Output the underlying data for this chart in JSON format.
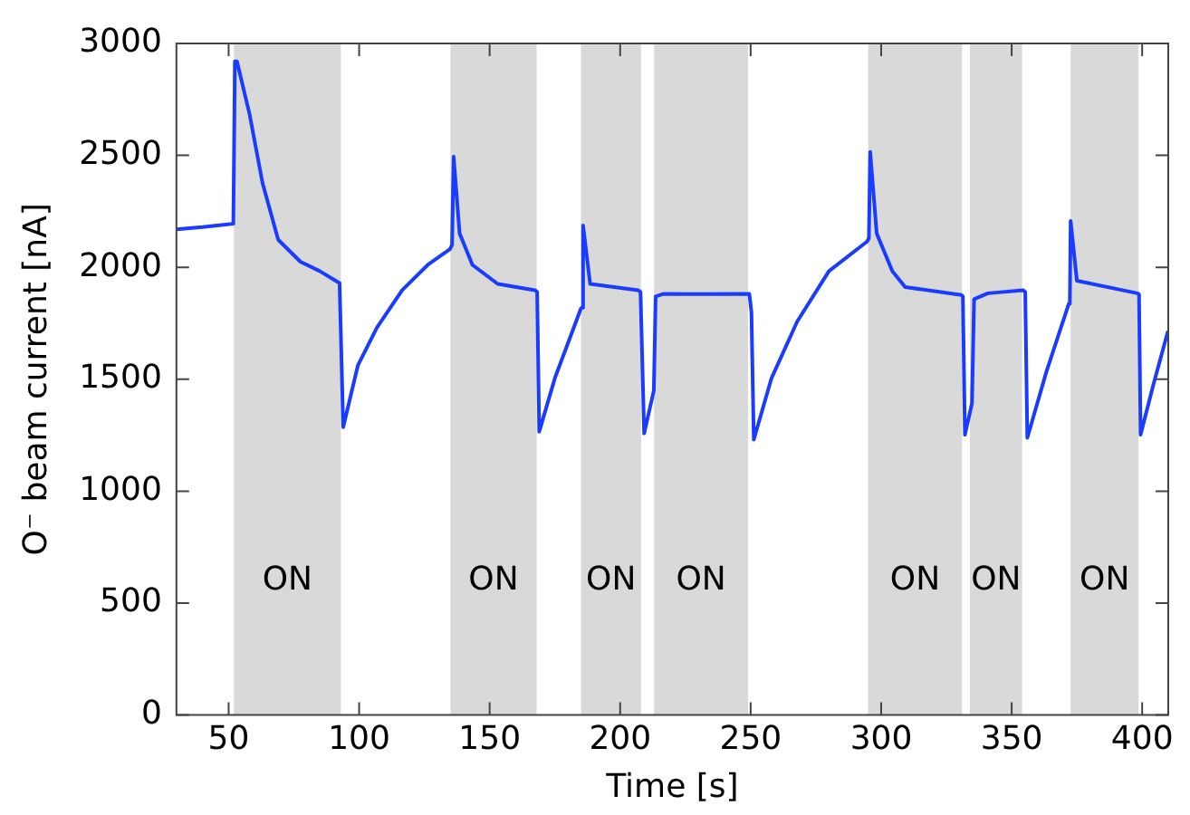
{
  "chart_data": {
    "type": "line",
    "xlabel": "Time [s]",
    "ylabel": "O⁻ beam current [nA]",
    "xlim": [
      30,
      410
    ],
    "xticks": [
      50,
      100,
      150,
      200,
      250,
      300,
      350,
      400
    ],
    "ylim": [
      0,
      3000
    ],
    "yticks": [
      0,
      500,
      1000,
      1500,
      2000,
      2500,
      3000
    ],
    "grid": false,
    "legend": false,
    "marker": "none",
    "line_style": "solid",
    "bands": [
      {
        "axis": "x",
        "from": 52,
        "to": 93,
        "label": "ON",
        "color": "#d9d9d9"
      },
      {
        "axis": "x",
        "from": 135,
        "to": 168,
        "label": "ON",
        "color": "#d9d9d9"
      },
      {
        "axis": "x",
        "from": 185,
        "to": 208,
        "label": "ON",
        "color": "#d9d9d9"
      },
      {
        "axis": "x",
        "from": 213,
        "to": 249,
        "label": "ON",
        "color": "#d9d9d9"
      },
      {
        "axis": "x",
        "from": 295,
        "to": 331,
        "label": "ON",
        "color": "#d9d9d9"
      },
      {
        "axis": "x",
        "from": 334,
        "to": 354,
        "label": "ON",
        "color": "#d9d9d9"
      },
      {
        "axis": "x",
        "from": 372.6,
        "to": 398.6,
        "label": "ON",
        "color": "#d9d9d9"
      }
    ],
    "series": [
      {
        "color": "#1a3cff",
        "x": [
          30,
          40,
          51.8,
          52.4,
          53.2,
          58,
          63,
          69,
          77.5,
          84.9,
          91.7,
          92.5,
          93.9,
          99.5,
          106.8,
          116.5,
          126.3,
          134.8,
          135.6,
          136.2,
          138.5,
          143.4,
          153.1,
          167.3,
          168.2,
          169,
          175,
          184.9,
          185.3,
          185.8,
          188.5,
          206.8,
          207.8,
          209.2,
          212.9,
          213.6,
          216.5,
          230,
          249.5,
          250.3,
          251.2,
          258,
          267.8,
          280,
          294.6,
          295.3,
          295.8,
          298.3,
          304.3,
          309.2,
          330.7,
          331.3,
          332.1,
          334.8,
          335.6,
          340.9,
          354.3,
          355.2,
          356,
          363.3,
          371.9,
          372.3,
          372.6,
          375,
          398.2,
          398.8,
          399.4,
          404.3,
          409.9
        ],
        "values": [
          2170,
          2180,
          2195,
          2920,
          2920,
          2685,
          2376,
          2123,
          2025,
          1983,
          1935,
          1930,
          1286,
          1561,
          1730,
          1898,
          2011,
          2081,
          2100,
          2494,
          2151,
          2011,
          1926,
          1898,
          1890,
          1266,
          1505,
          1814,
          1820,
          2187,
          1926,
          1898,
          1890,
          1258,
          1449,
          1870,
          1881,
          1880,
          1881,
          1800,
          1230,
          1505,
          1757,
          1983,
          2115,
          2130,
          2516,
          2151,
          1983,
          1912,
          1876,
          1870,
          1252,
          1393,
          1858,
          1884,
          1898,
          1890,
          1238,
          1533,
          1837,
          1850,
          2207,
          1940,
          1884,
          1880,
          1252,
          1476,
          1716
        ]
      }
    ]
  }
}
